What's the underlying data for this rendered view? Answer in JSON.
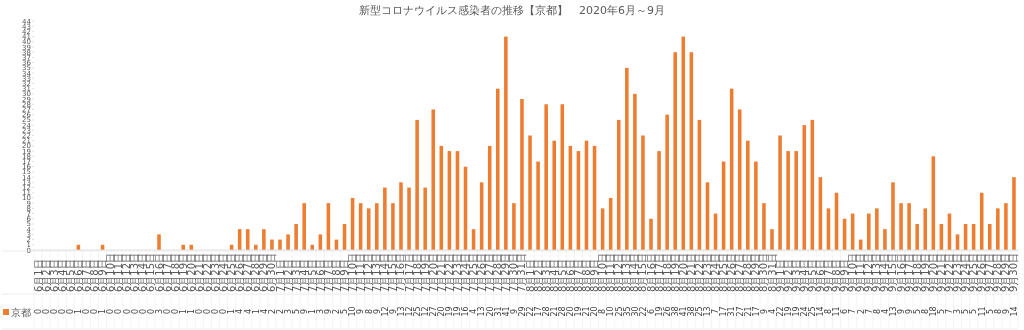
{
  "chart_data": {
    "type": "bar",
    "title": "新型コロナウイルス感染者の推移【京都】　2020年6月～9月",
    "categories": [
      "6月1日",
      "6月2日",
      "6月3日",
      "6月4日",
      "6月5日",
      "6月6日",
      "6月7日",
      "6月8日",
      "6月9日",
      "6月10日",
      "6月11日",
      "6月12日",
      "6月13日",
      "6月14日",
      "6月15日",
      "6月16日",
      "6月17日",
      "6月18日",
      "6月19日",
      "6月20日",
      "6月21日",
      "6月22日",
      "6月23日",
      "6月24日",
      "6月25日",
      "6月26日",
      "6月27日",
      "6月28日",
      "6月29日",
      "6月30日",
      "7月1日",
      "7月2日",
      "7月3日",
      "7月4日",
      "7月5日",
      "7月6日",
      "7月7日",
      "7月8日",
      "7月9日",
      "7月10日",
      "7月11日",
      "7月12日",
      "7月13日",
      "7月14日",
      "7月15日",
      "7月16日",
      "7月17日",
      "7月18日",
      "7月19日",
      "7月20日",
      "7月21日",
      "7月22日",
      "7月23日",
      "7月24日",
      "7月25日",
      "7月26日",
      "7月27日",
      "7月28日",
      "7月29日",
      "7月30日",
      "7月31日",
      "8月1日",
      "8月2日",
      "8月3日",
      "8月4日",
      "8月5日",
      "8月6日",
      "8月7日",
      "8月8日",
      "8月9日",
      "8月10日",
      "8月11日",
      "8月12日",
      "8月13日",
      "8月14日",
      "8月15日",
      "8月16日",
      "8月17日",
      "8月18日",
      "8月19日",
      "8月20日",
      "8月21日",
      "8月22日",
      "8月23日",
      "8月24日",
      "8月25日",
      "8月26日",
      "8月27日",
      "8月28日",
      "8月29日",
      "8月30日",
      "8月31日",
      "9月1日",
      "9月2日",
      "9月3日",
      "9月4日",
      "9月5日",
      "9月6日",
      "9月7日",
      "9月8日",
      "9月9日",
      "9月10日",
      "9月11日",
      "9月12日",
      "9月13日",
      "9月14日",
      "9月15日",
      "9月16日",
      "9月17日",
      "9月18日",
      "9月19日",
      "9月20日",
      "9月21日",
      "9月22日",
      "9月23日",
      "9月24日",
      "9月25日",
      "9月26日",
      "9月27日",
      "9月28日",
      "9月29日",
      "9月30日"
    ],
    "series": [
      {
        "name": "京都",
        "color": "#ed7d31",
        "values": [
          0,
          0,
          0,
          0,
          0,
          1,
          0,
          0,
          1,
          0,
          0,
          0,
          0,
          0,
          0,
          3,
          0,
          0,
          1,
          1,
          0,
          0,
          0,
          0,
          1,
          4,
          4,
          1,
          4,
          2,
          2,
          3,
          5,
          9,
          1,
          3,
          9,
          2,
          5,
          10,
          9,
          8,
          9,
          12,
          9,
          13,
          12,
          25,
          12,
          27,
          20,
          19,
          19,
          16,
          4,
          13,
          20,
          31,
          41,
          9,
          29,
          22,
          17,
          28,
          21,
          28,
          20,
          19,
          21,
          20,
          8,
          10,
          25,
          35,
          30,
          22,
          6,
          19,
          26,
          38,
          41,
          38,
          25,
          13,
          7,
          17,
          31,
          27,
          21,
          17,
          9,
          4,
          22,
          19,
          19,
          24,
          25,
          14,
          8,
          11,
          6,
          7,
          2,
          7,
          8,
          4,
          13,
          9,
          9,
          5,
          8,
          18,
          5,
          7,
          3,
          5,
          5,
          11,
          5,
          8,
          9,
          14
        ]
      }
    ],
    "ylim": [
      0,
      44
    ],
    "yticks": [
      0,
      1,
      2,
      3,
      4,
      5,
      6,
      7,
      8,
      9,
      10,
      11,
      12,
      13,
      14,
      15,
      16,
      17,
      18,
      19,
      20,
      21,
      22,
      23,
      24,
      25,
      26,
      27,
      28,
      29,
      30,
      31,
      32,
      33,
      34,
      35,
      36,
      37,
      38,
      39,
      40,
      41,
      42,
      43,
      44
    ],
    "data_labels": true,
    "legend": "bottom left",
    "grid": false
  }
}
